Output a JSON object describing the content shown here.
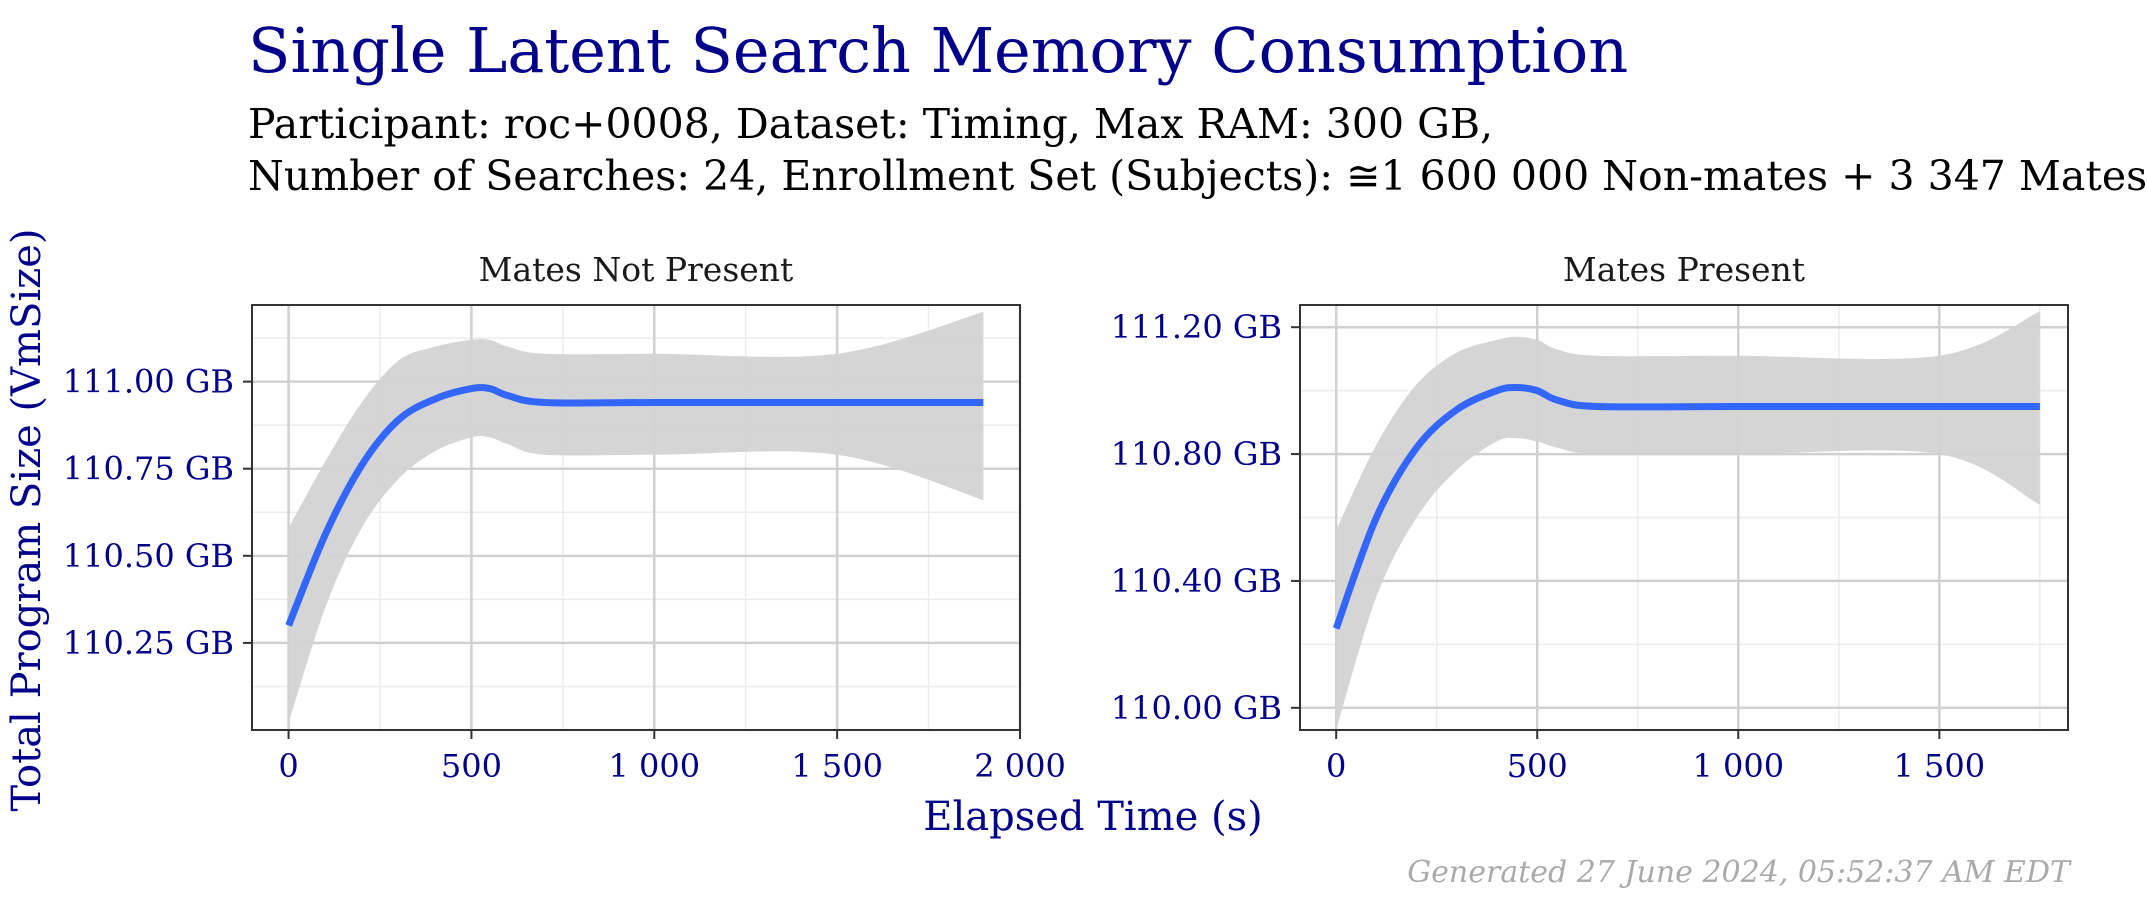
{
  "title": "Single Latent Search Memory Consumption",
  "subtitle_line1": "Participant: roc+0008, Dataset: Timing, Max RAM: 300 GB,",
  "subtitle_line2": "Number of Searches: 24, Enrollment Set (Subjects): ≅1 600 000 Non-mates + 3 347 Mates",
  "caption": "Generated 27 June 2024, 05:52:37 AM EDT",
  "colors": {
    "title": "#00008B",
    "line": "#3366FF",
    "band": "#D3D3D3",
    "axis_text": "#00008B"
  },
  "chart_data": [
    {
      "type": "line",
      "title": "Mates Not Present",
      "xlabel": "Elapsed Time (s)",
      "ylabel": "Total Program Size (VmSize)",
      "xlim": [
        -100,
        2000
      ],
      "ylim": [
        110.0,
        111.22
      ],
      "grid": true,
      "x_ticks": [
        0,
        500,
        1000,
        1500,
        2000
      ],
      "x_tick_labels": [
        "0",
        "500",
        "1 000",
        "1 500",
        "2 000"
      ],
      "y_ticks": [
        110.25,
        110.5,
        110.75,
        111.0
      ],
      "y_tick_labels": [
        "110.25 GB",
        "110.50 GB",
        "110.75 GB",
        "111.00 GB"
      ],
      "series": [
        {
          "x": [
            0,
            100,
            200,
            300,
            400,
            500,
            550,
            600,
            700,
            1000,
            1500,
            1900
          ],
          "y": [
            110.3,
            110.56,
            110.76,
            110.89,
            110.95,
            110.98,
            110.98,
            110.96,
            110.94,
            110.94,
            110.94,
            110.94
          ],
          "ymin": [
            110.02,
            110.35,
            110.58,
            110.72,
            110.8,
            110.84,
            110.84,
            110.82,
            110.79,
            110.79,
            110.79,
            110.66
          ],
          "ymax": [
            110.58,
            110.77,
            110.94,
            111.06,
            111.1,
            111.12,
            111.12,
            111.1,
            111.08,
            111.08,
            111.08,
            111.2
          ]
        }
      ]
    },
    {
      "type": "line",
      "title": "Mates Present",
      "xlabel": "Elapsed Time (s)",
      "ylabel": "Total Program Size (VmSize)",
      "xlim": [
        -90,
        1820
      ],
      "ylim": [
        109.93,
        111.27
      ],
      "grid": true,
      "x_ticks": [
        0,
        500,
        1000,
        1500
      ],
      "x_tick_labels": [
        "0",
        "500",
        "1 000",
        "1 500"
      ],
      "y_ticks": [
        110.0,
        110.4,
        110.8,
        111.2
      ],
      "y_tick_labels": [
        "110.00 GB",
        "110.40 GB",
        "110.80 GB",
        "111.20 GB"
      ],
      "series": [
        {
          "x": [
            0,
            100,
            200,
            300,
            400,
            450,
            500,
            550,
            650,
            1000,
            1500,
            1750
          ],
          "y": [
            110.25,
            110.6,
            110.82,
            110.94,
            111.0,
            111.01,
            111.0,
            110.97,
            110.95,
            110.95,
            110.95,
            110.95
          ],
          "ymin": [
            109.93,
            110.35,
            110.6,
            110.75,
            110.84,
            110.85,
            110.84,
            110.82,
            110.8,
            110.8,
            110.8,
            110.64
          ],
          "ymax": [
            110.56,
            110.83,
            111.02,
            111.12,
            111.16,
            111.17,
            111.16,
            111.13,
            111.11,
            111.11,
            111.11,
            111.25
          ]
        }
      ]
    }
  ]
}
